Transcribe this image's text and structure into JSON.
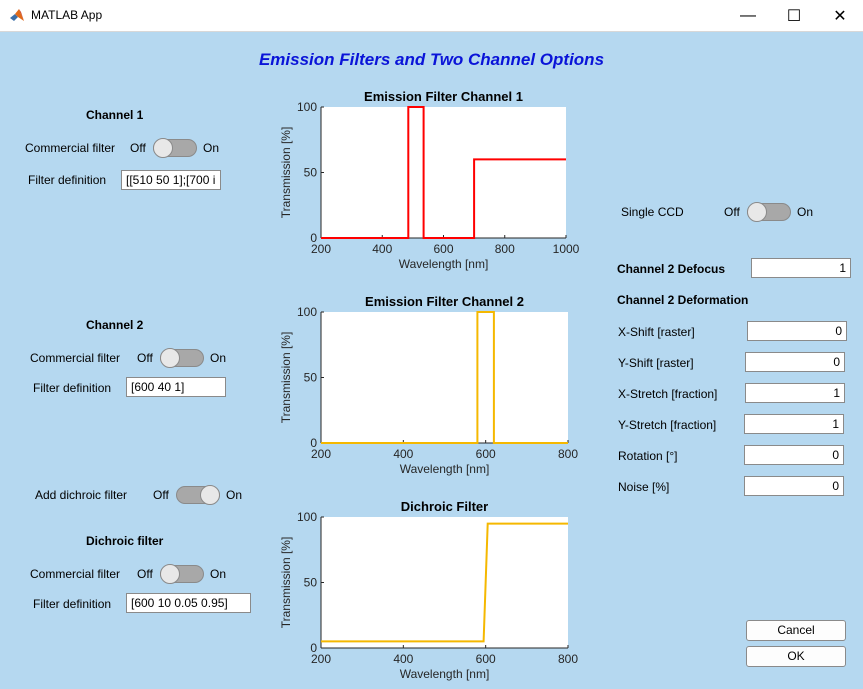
{
  "window": {
    "title": "MATLAB App",
    "minimize": "—",
    "maximize": "☐",
    "close": "✕"
  },
  "title": "Emission Filters and Two Channel Options",
  "channel1": {
    "heading": "Channel 1",
    "commercial_label": "Commercial filter",
    "off": "Off",
    "on": "On",
    "filter_label": "Filter definition",
    "filter_value": "[[510 50 1];[700 i"
  },
  "channel2": {
    "heading": "Channel 2",
    "commercial_label": "Commercial filter",
    "off": "Off",
    "on": "On",
    "filter_label": "Filter definition",
    "filter_value": "[600 40 1]"
  },
  "dichroic_toggle": {
    "label": "Add dichroic filter",
    "off": "Off",
    "on": "On"
  },
  "dichroic": {
    "heading": "Dichroic filter",
    "commercial_label": "Commercial filter",
    "off": "Off",
    "on": "On",
    "filter_label": "Filter definition",
    "filter_value": "[600 10 0.05 0.95]"
  },
  "single_ccd": {
    "label": "Single CCD",
    "off": "Off",
    "on": "On"
  },
  "defocus": {
    "label": "Channel 2 Defocus",
    "value": "1"
  },
  "deformation": {
    "heading": "Channel 2 Deformation",
    "fields": [
      {
        "label": "X-Shift [raster]",
        "value": "0"
      },
      {
        "label": "Y-Shift [raster]",
        "value": "0"
      },
      {
        "label": "X-Stretch [fraction]",
        "value": "1"
      },
      {
        "label": "Y-Stretch [fraction]",
        "value": "1"
      },
      {
        "label": "Rotation [°]",
        "value": "0"
      },
      {
        "label": "Noise [%]",
        "value": "0"
      }
    ]
  },
  "buttons": {
    "cancel": "Cancel",
    "ok": "OK"
  },
  "chart_data": [
    {
      "type": "line",
      "title": "Emission Filter Channel 1",
      "xlabel": "Wavelength [nm]",
      "ylabel": "Transmission [%]",
      "xlim": [
        200,
        1000
      ],
      "ylim": [
        0,
        100
      ],
      "xticks": [
        "200",
        "400",
        "600",
        "800",
        "1000"
      ],
      "yticks": [
        "0",
        "50",
        "100"
      ],
      "color": "#ff0000",
      "x": [
        200,
        485,
        485,
        535,
        535,
        700,
        700,
        1000
      ],
      "y": [
        0,
        0,
        100,
        100,
        0,
        0,
        60,
        60
      ]
    },
    {
      "type": "line",
      "title": "Emission Filter Channel 2",
      "xlabel": "Wavelength [nm]",
      "ylabel": "Transmission [%]",
      "xlim": [
        200,
        800
      ],
      "ylim": [
        0,
        100
      ],
      "xticks": [
        "200",
        "400",
        "600",
        "800"
      ],
      "yticks": [
        "0",
        "50",
        "100"
      ],
      "color": "#f5b800",
      "x": [
        200,
        580,
        580,
        620,
        620,
        800
      ],
      "y": [
        0,
        0,
        100,
        100,
        0,
        0
      ]
    },
    {
      "type": "line",
      "title": "Dichroic Filter",
      "xlabel": "Wavelength [nm]",
      "ylabel": "Transmission [%]",
      "xlim": [
        200,
        800
      ],
      "ylim": [
        0,
        100
      ],
      "xticks": [
        "200",
        "400",
        "600",
        "800"
      ],
      "yticks": [
        "0",
        "50",
        "100"
      ],
      "color": "#f5b800",
      "x": [
        200,
        595,
        605,
        800
      ],
      "y": [
        5,
        5,
        95,
        95
      ]
    }
  ]
}
